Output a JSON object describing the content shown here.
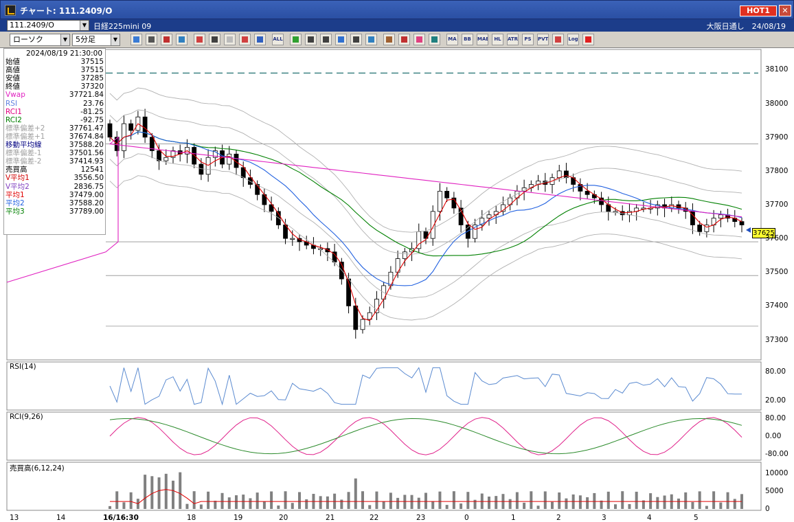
{
  "window": {
    "title": "チャート: 111.2409/O",
    "hot_label": "HOT1",
    "close_glyph": "✕"
  },
  "infobar": {
    "symbol": "111.2409/O",
    "instrument_name": "日経225mini 09",
    "session_date": "大阪日通し　24/08/19"
  },
  "toolbar": {
    "chart_type": "ローソク",
    "interval": "5分足",
    "buttons": [
      "zoom",
      "cursor",
      "marks",
      "clock",
      "fan",
      "candles",
      "disabled",
      "ohlc",
      "bars",
      "all",
      "pen",
      "pencil",
      "arrow",
      "line",
      "doc",
      "trash",
      "grid",
      "tools",
      "palette",
      "indicator",
      "MA",
      "BB",
      "MAE",
      "HL",
      "ATR",
      "PS",
      "PVT",
      "frame",
      "Log",
      "exit"
    ],
    "button_labels": {
      "all": "ALL",
      "MA": "MA",
      "BB": "BB",
      "MAE": "MAE",
      "HL": "HL",
      "ATR": "ATR",
      "PS": "PS",
      "PVT": "PVT",
      "Log": "Log"
    }
  },
  "ohlc": {
    "datetime": "2024/08/19 21:30:00",
    "rows": [
      {
        "label": "始値",
        "value": "37515",
        "color": "#000000"
      },
      {
        "label": "高値",
        "value": "37515",
        "color": "#000000"
      },
      {
        "label": "安値",
        "value": "37285",
        "color": "#000000"
      },
      {
        "label": "終値",
        "value": "37320",
        "color": "#000000"
      },
      {
        "label": "Vwap",
        "value": "37721.84",
        "color": "#e020c0"
      },
      {
        "label": "RSI",
        "value": "23.76",
        "color": "#6080e0"
      },
      {
        "label": "RCI1",
        "value": "-81.25",
        "color": "#e00080"
      },
      {
        "label": "RCI2",
        "value": "-92.75",
        "color": "#008000"
      },
      {
        "label": "標準偏差+2",
        "value": "37761.47",
        "color": "#a0a0a0"
      },
      {
        "label": "標準偏差+1",
        "value": "37674.84",
        "color": "#a0a0a0"
      },
      {
        "label": "移動平均線",
        "value": "37588.20",
        "color": "#000080"
      },
      {
        "label": "標準偏差-1",
        "value": "37501.56",
        "color": "#a0a0a0"
      },
      {
        "label": "標準偏差-2",
        "value": "37414.93",
        "color": "#a0a0a0"
      },
      {
        "label": "売買高",
        "value": "12541",
        "color": "#000000"
      },
      {
        "label": "V平均1",
        "value": "3556.50",
        "color": "#d00000"
      },
      {
        "label": "V平均2",
        "value": "2836.75",
        "color": "#8040c0"
      },
      {
        "label": "平均1",
        "value": "37479.00",
        "color": "#e00000"
      },
      {
        "label": "平均2",
        "value": "37588.20",
        "color": "#2060e0"
      },
      {
        "label": "平均3",
        "value": "37789.00",
        "color": "#008000"
      }
    ]
  },
  "price_axis": {
    "ticks": [
      "38100",
      "38000",
      "37900",
      "37800",
      "37700",
      "37600",
      "37500",
      "37400",
      "37300"
    ],
    "current_price": "37625"
  },
  "rsi_panel": {
    "label": "RSI(14)",
    "ticks": [
      "80.00",
      "20.00"
    ]
  },
  "rci_panel": {
    "label": "RCI(9,26)",
    "ticks": [
      "80.00",
      "0.00",
      "-80.00"
    ]
  },
  "volume_panel": {
    "label": "売買高(6,12,24)",
    "ticks": [
      "10000",
      "5000",
      "0"
    ]
  },
  "date_axis": {
    "labels": [
      "13",
      "14",
      "16/16:30",
      "18",
      "19",
      "20",
      "21",
      "22",
      "23",
      "0",
      "1",
      "2",
      "3",
      "4",
      "5"
    ]
  },
  "colors": {
    "candle_up": "#000000",
    "candle_down": "#000000",
    "ma1": "#e00000",
    "ma2": "#2060e0",
    "ma3": "#008000",
    "vwap": "#e020c0",
    "bollinger": "#b0b0b0",
    "dashed_level": "#207070",
    "rsi": "#5a8ad0",
    "rci1": "#e0208a",
    "rci2": "#2a8a2a",
    "volume": "#808080"
  },
  "chart_data": {
    "type": "candlestick",
    "ylim": [
      37240,
      38160
    ],
    "reference_levels": [
      38090,
      37880,
      37590,
      37490,
      37340
    ],
    "closes": [
      37900,
      37860,
      37940,
      37920,
      37960,
      37900,
      37860,
      37830,
      37840,
      37860,
      37850,
      37870,
      37820,
      37790,
      37840,
      37860,
      37820,
      37850,
      37810,
      37780,
      37760,
      37730,
      37700,
      37680,
      37640,
      37600,
      37600,
      37590,
      37580,
      37570,
      37570,
      37560,
      37530,
      37480,
      37400,
      37330,
      37360,
      37380,
      37420,
      37460,
      37500,
      37540,
      37560,
      37570,
      37620,
      37600,
      37680,
      37740,
      37720,
      37690,
      37640,
      37600,
      37640,
      37660,
      37670,
      37680,
      37700,
      37720,
      37740,
      37750,
      37760,
      37770,
      37760,
      37780,
      37800,
      37780,
      37760,
      37740,
      37730,
      37720,
      37700,
      37680,
      37680,
      37670,
      37680,
      37690,
      37690,
      37690,
      37700,
      37690,
      37700,
      37690,
      37680,
      37640,
      37620,
      37640,
      37660,
      37670,
      37660,
      37650,
      37640
    ]
  }
}
